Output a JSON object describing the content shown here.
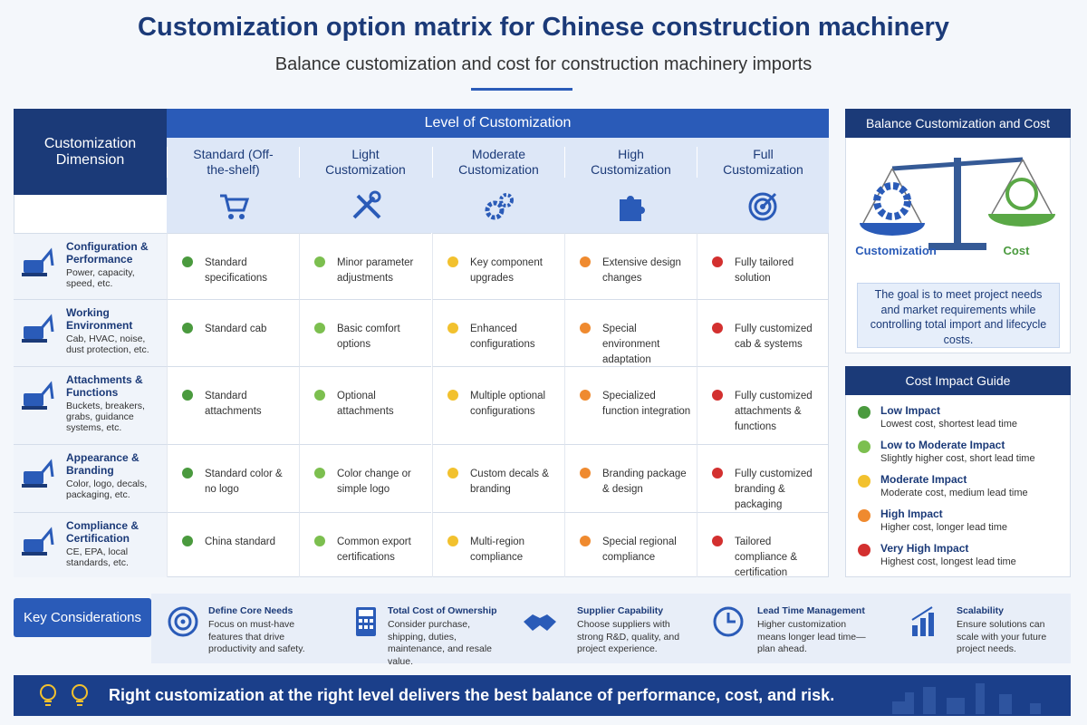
{
  "header": {
    "title": "Customization option matrix for Chinese construction machinery",
    "subtitle": "Balance customization and cost for construction machinery imports"
  },
  "matrix": {
    "dimension_header": "Customization Dimension",
    "level_header": "Level of Customization",
    "levels": [
      "Standard (Off-the-shelf)",
      "Light Customization",
      "Moderate Customization",
      "High Customization",
      "Full Customization"
    ],
    "rows": [
      {
        "title": "Configuration & Performance",
        "description": "Power, capacity, speed, etc.",
        "cells": [
          "Standard specifications",
          "Minor parameter adjustments",
          "Key component upgrades",
          "Extensive design changes",
          "Fully tailored solution"
        ]
      },
      {
        "title": "Working Environment",
        "description": "Cab, HVAC, noise, dust protection, etc.",
        "cells": [
          "Standard cab",
          "Basic comfort options",
          "Enhanced configurations",
          "Special environment adaptation",
          "Fully customized cab & systems"
        ]
      },
      {
        "title": "Attachments & Functions",
        "description": "Buckets, breakers, grabs, guidance systems, etc.",
        "cells": [
          "Standard attachments",
          "Optional attachments",
          "Multiple optional configurations",
          "Specialized function integration",
          "Fully customized attachments & functions"
        ]
      },
      {
        "title": "Appearance & Branding",
        "description": "Color, logo, decals, packaging, etc.",
        "cells": [
          "Standard color & no logo",
          "Color change or simple logo",
          "Custom decals & branding",
          "Branding package & design",
          "Fully customized branding & packaging"
        ]
      },
      {
        "title": "Compliance & Certification",
        "description": "CE, EPA, local standards, etc.",
        "cells": [
          "China standard",
          "Common export certifications",
          "Multi-region compliance",
          "Special regional compliance",
          "Tailored compliance & certification"
        ]
      }
    ]
  },
  "balance": {
    "title": "Balance Customization and Cost",
    "left_label": "Customization",
    "right_label": "Cost",
    "note": "The goal is to meet project needs and market requirements while controlling total import and lifecycle costs."
  },
  "impact_guide": {
    "title": "Cost Impact Guide",
    "levels": [
      {
        "name": "Low Impact",
        "description": "Lowest cost, shortest lead time",
        "color": "#4a9a3e"
      },
      {
        "name": "Low to Moderate Impact",
        "description": "Slightly higher cost, short lead time",
        "color": "#7cbf4f"
      },
      {
        "name": "Moderate Impact",
        "description": "Moderate cost, medium lead time",
        "color": "#f2c12e"
      },
      {
        "name": "High Impact",
        "description": "Higher cost, longer lead time",
        "color": "#ef8a2f"
      },
      {
        "name": "Very High Impact",
        "description": "Highest cost, longest lead time",
        "color": "#d3302f"
      }
    ]
  },
  "considerations": {
    "label": "Key Considerations",
    "items": [
      {
        "title": "Define Core Needs",
        "text": "Focus on must-have features that drive productivity and safety."
      },
      {
        "title": "Total Cost of Ownership",
        "text": "Consider purchase, shipping, duties, maintenance, and resale value."
      },
      {
        "title": "Supplier Capability",
        "text": "Choose suppliers with strong R&D, quality, and project experience."
      },
      {
        "title": "Lead Time Management",
        "text": "Higher customization means longer lead time—plan ahead."
      },
      {
        "title": "Scalability",
        "text": "Ensure solutions can scale with your future project needs."
      }
    ]
  },
  "footer": "Right customization at the right level delivers the best balance of performance, cost, and risk."
}
